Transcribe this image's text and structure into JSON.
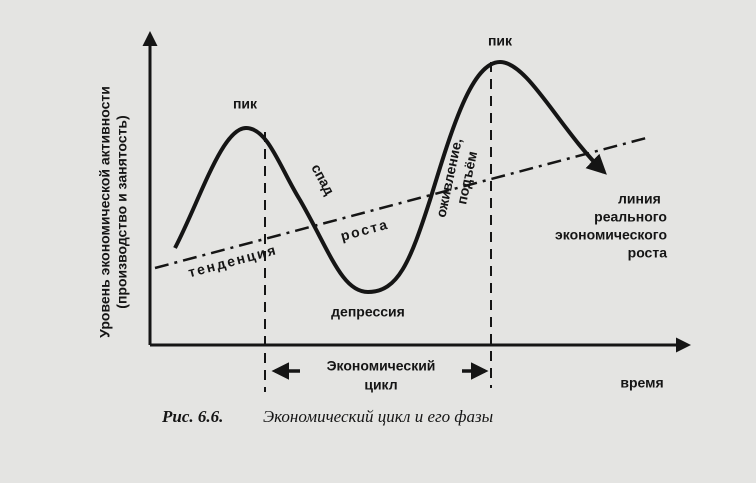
{
  "diagram": {
    "y_axis_label": [
      "Уровень экономической активности",
      "(производство и занятость)"
    ],
    "x_axis_label": "время",
    "peak_left": "пик",
    "peak_right": "пик",
    "recession": "спад",
    "trend": [
      "тенденция",
      "роста"
    ],
    "depression": "депрессия",
    "recovery": [
      "оживление,",
      "подъём"
    ],
    "real_growth_line": [
      "линия",
      "реального",
      "экономического",
      "роста"
    ],
    "cycle": [
      "Экономический",
      "цикл"
    ]
  },
  "caption": {
    "number": "Рис. 6.6.",
    "text": "Экономический цикл и его фазы"
  }
}
